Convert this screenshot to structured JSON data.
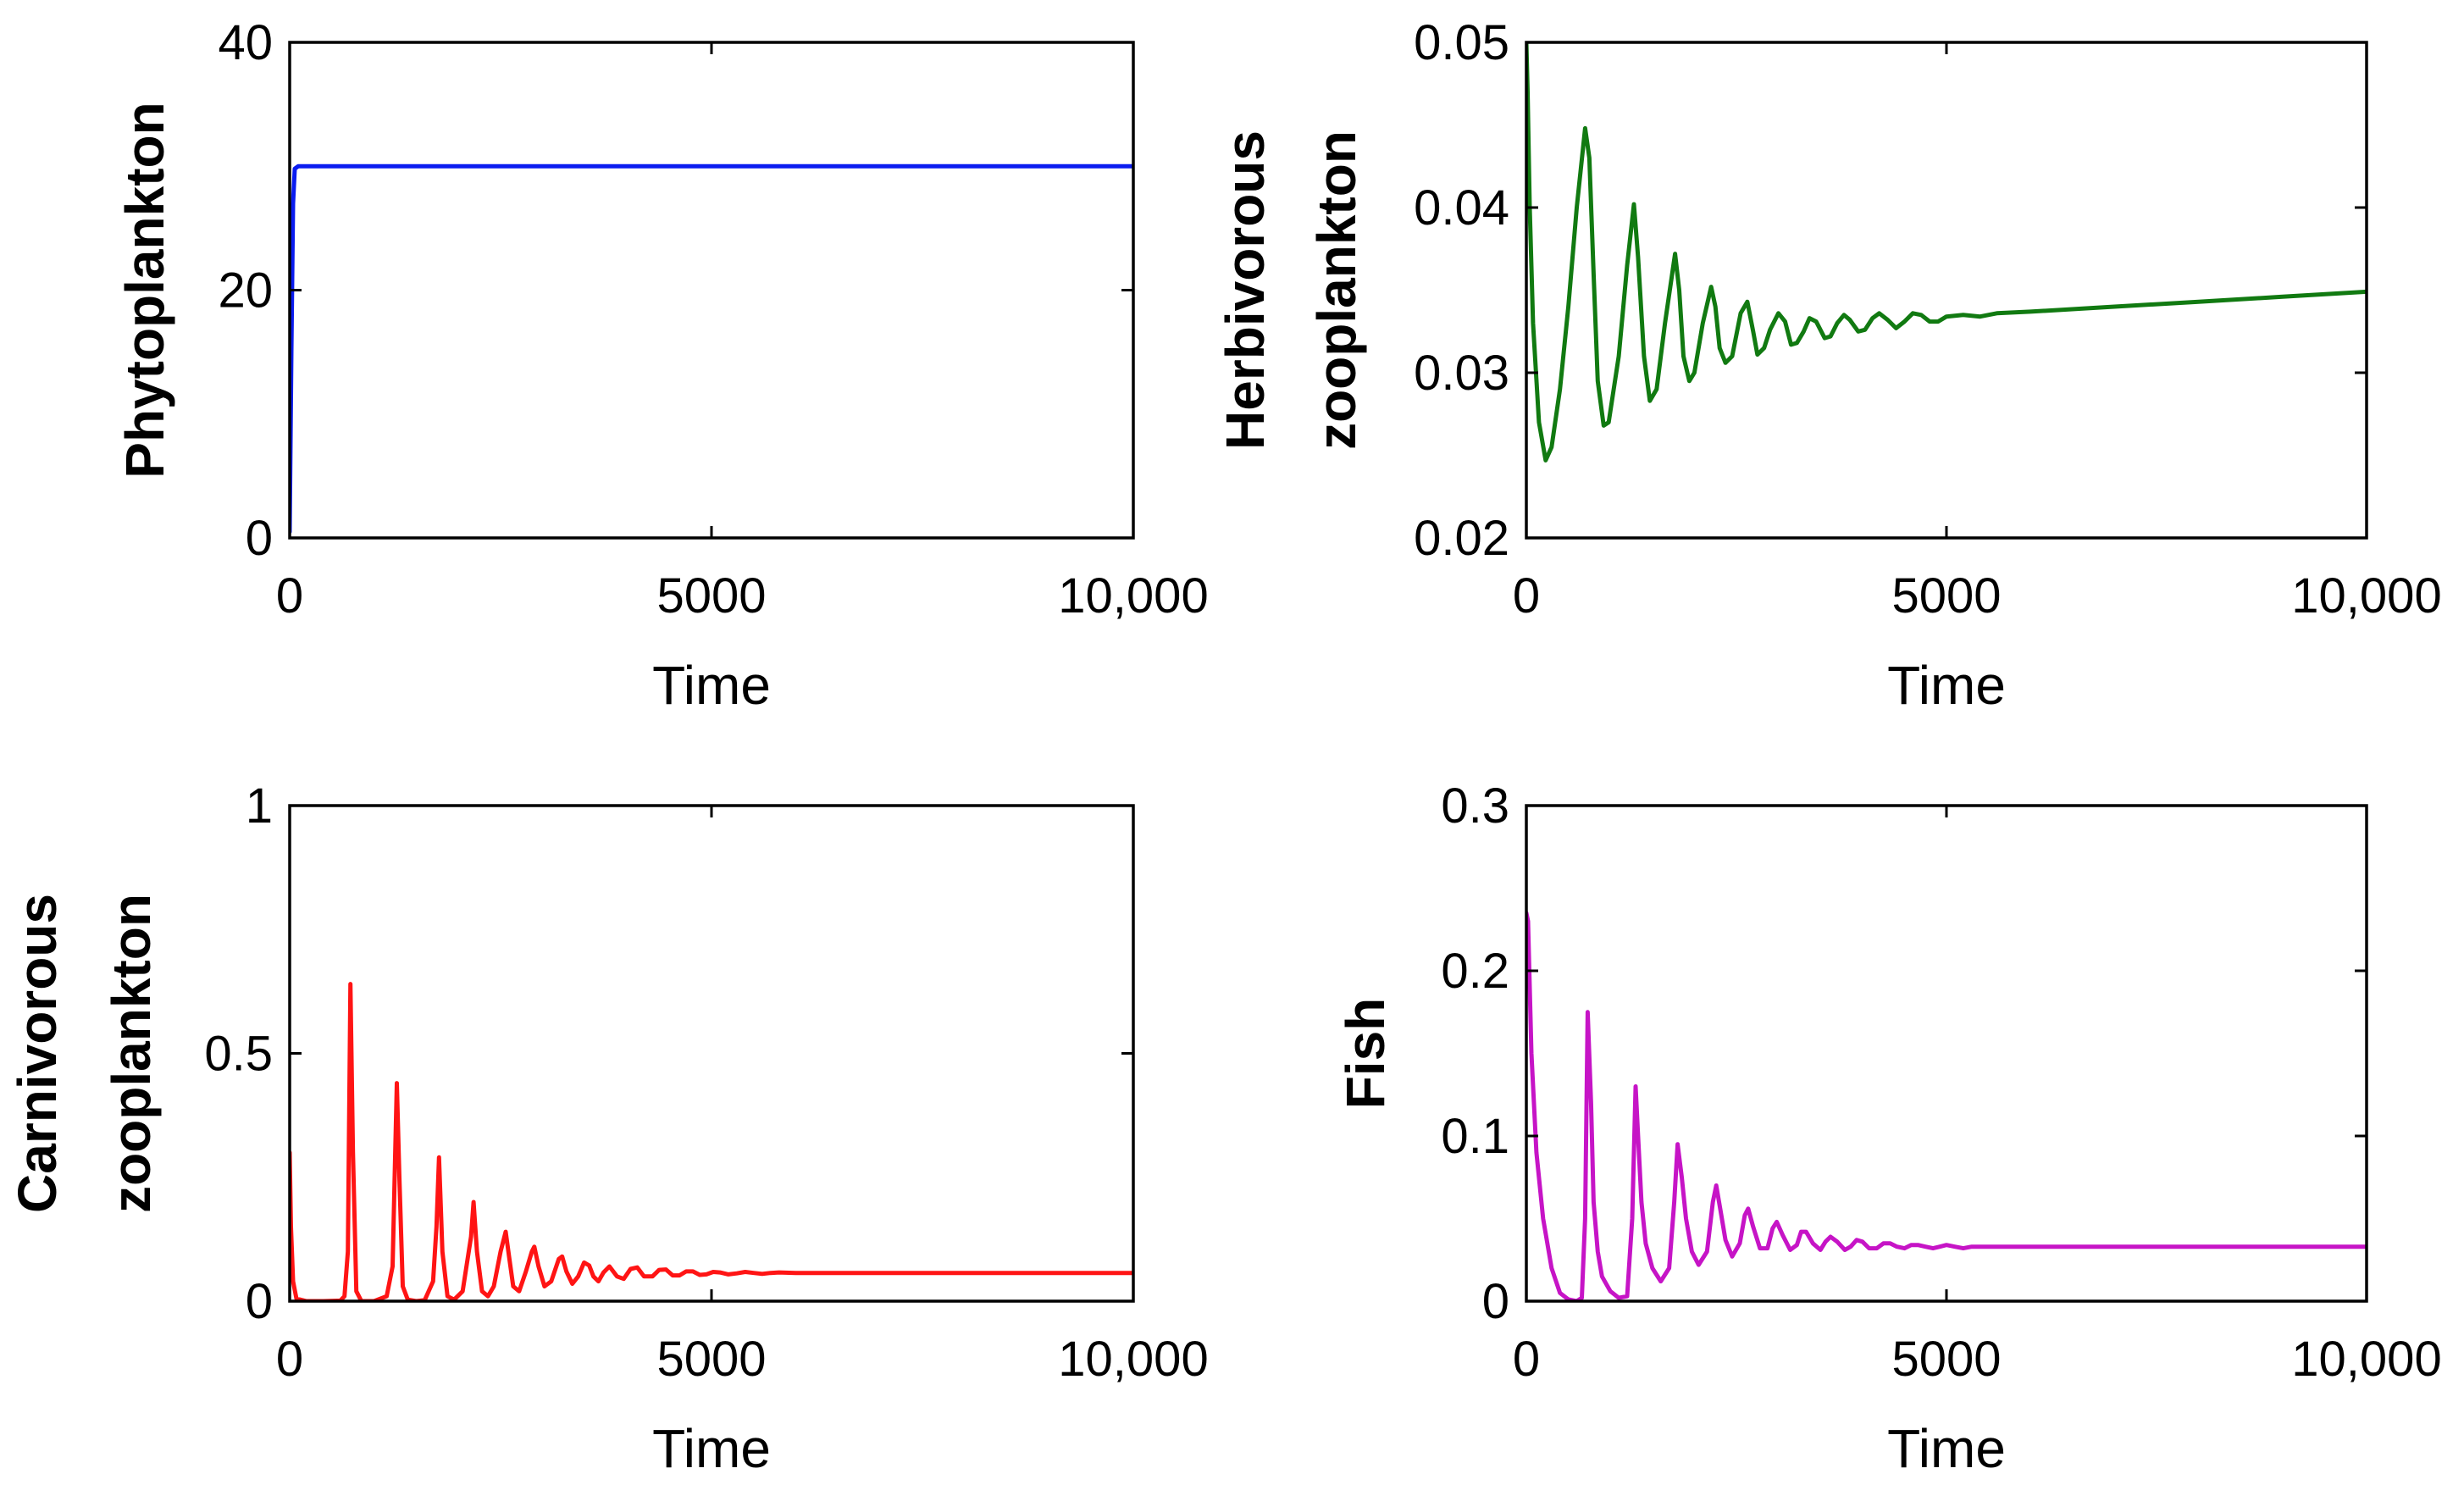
{
  "chart_data": [
    {
      "type": "line",
      "ylabel": [
        "Phytoplankton"
      ],
      "xlabel": "Time",
      "xlim": [
        0,
        10000
      ],
      "ylim": [
        0,
        40
      ],
      "xticks": [
        0,
        5000,
        10000
      ],
      "xtick_labels": [
        "0",
        "5000",
        "10,000"
      ],
      "yticks": [
        0,
        20,
        40
      ],
      "ytick_labels": [
        "0",
        "20",
        "40"
      ],
      "color": "#0a1cf0",
      "series": [
        {
          "name": "Phytoplankton",
          "x": [
            0,
            20,
            40,
            60,
            100,
            200,
            500,
            1000,
            2000,
            5000,
            10000
          ],
          "y": [
            0.5,
            15,
            27,
            29.8,
            30,
            30,
            30,
            30,
            30,
            30,
            30
          ]
        }
      ]
    },
    {
      "type": "line",
      "ylabel": [
        "Herbivorous",
        "zooplankton"
      ],
      "xlabel": "Time",
      "xlim": [
        0,
        10000
      ],
      "ylim": [
        0.02,
        0.05
      ],
      "xticks": [
        0,
        5000,
        10000
      ],
      "xtick_labels": [
        "0",
        "5000",
        "10,000"
      ],
      "yticks": [
        0.02,
        0.03,
        0.04,
        0.05
      ],
      "ytick_labels": [
        "0.02",
        "0.03",
        "0.04",
        "0.05"
      ],
      "color": "#117a11",
      "series": [
        {
          "name": "Herbivorous zooplankton",
          "x": [
            0,
            15,
            40,
            80,
            150,
            230,
            300,
            400,
            500,
            600,
            700,
            750,
            800,
            850,
            920,
            980,
            1100,
            1200,
            1280,
            1330,
            1400,
            1470,
            1550,
            1650,
            1770,
            1820,
            1870,
            1940,
            2000,
            2100,
            2200,
            2250,
            2300,
            2370,
            2450,
            2550,
            2630,
            2700,
            2750,
            2830,
            2900,
            3000,
            3080,
            3150,
            3220,
            3300,
            3370,
            3450,
            3550,
            3620,
            3700,
            3780,
            3850,
            3950,
            4030,
            4120,
            4200,
            4300,
            4400,
            4500,
            4600,
            4700,
            4800,
            4900,
            5000,
            5200,
            5400,
            5600,
            6000,
            7000,
            8000,
            9000,
            10000
          ],
          "y": [
            0.05,
            0.047,
            0.04,
            0.033,
            0.027,
            0.0247,
            0.0255,
            0.029,
            0.034,
            0.04,
            0.0448,
            0.043,
            0.036,
            0.0295,
            0.0268,
            0.027,
            0.031,
            0.0365,
            0.0402,
            0.037,
            0.031,
            0.0283,
            0.029,
            0.033,
            0.0372,
            0.035,
            0.031,
            0.0295,
            0.03,
            0.033,
            0.0352,
            0.034,
            0.0315,
            0.0306,
            0.031,
            0.0336,
            0.0343,
            0.0325,
            0.0311,
            0.0315,
            0.0326,
            0.0336,
            0.0331,
            0.0317,
            0.0318,
            0.0325,
            0.0333,
            0.0331,
            0.0321,
            0.0322,
            0.033,
            0.0335,
            0.0332,
            0.0325,
            0.0326,
            0.0333,
            0.0336,
            0.0332,
            0.0327,
            0.0331,
            0.0336,
            0.0335,
            0.0331,
            0.0331,
            0.0334,
            0.0335,
            0.0334,
            0.0336,
            0.0337,
            0.034,
            0.0343,
            0.0346,
            0.0349
          ]
        }
      ]
    },
    {
      "type": "line",
      "ylabel": [
        "Carnivorous",
        "zooplankton"
      ],
      "xlabel": "Time",
      "xlim": [
        0,
        10000
      ],
      "ylim": [
        0,
        1
      ],
      "xticks": [
        0,
        5000,
        10000
      ],
      "xtick_labels": [
        "0",
        "5000",
        "10,000"
      ],
      "yticks": [
        0,
        0.5,
        1
      ],
      "ytick_labels": [
        "0",
        "0.5",
        "1"
      ],
      "color": "#ff1414",
      "series": [
        {
          "name": "Carnivorous zooplankton",
          "x": [
            0,
            15,
            40,
            80,
            200,
            400,
            600,
            650,
            690,
            720,
            750,
            790,
            850,
            1000,
            1150,
            1220,
            1270,
            1300,
            1340,
            1400,
            1500,
            1600,
            1700,
            1740,
            1770,
            1810,
            1870,
            1950,
            2050,
            2150,
            2180,
            2220,
            2280,
            2350,
            2420,
            2500,
            2560,
            2600,
            2650,
            2720,
            2800,
            2870,
            2900,
            2950,
            3020,
            3100,
            3190,
            3230,
            3280,
            3350,
            3420,
            3490,
            3550,
            3600,
            3660,
            3720,
            3790,
            3880,
            3960,
            4040,
            4120,
            4200,
            4300,
            4380,
            4460,
            4540,
            4620,
            4700,
            4780,
            4860,
            4940,
            5020,
            5100,
            5200,
            5300,
            5400,
            5500,
            5600,
            5700,
            5800,
            6000,
            6500,
            7000,
            8000,
            9000,
            10000
          ],
          "y": [
            0.3,
            0.15,
            0.04,
            0.005,
            0,
            0,
            0.001,
            0.01,
            0.1,
            0.64,
            0.3,
            0.02,
            0,
            0,
            0.01,
            0.07,
            0.44,
            0.25,
            0.03,
            0.003,
            0,
            0.002,
            0.04,
            0.15,
            0.29,
            0.1,
            0.01,
            0.003,
            0.02,
            0.13,
            0.2,
            0.1,
            0.02,
            0.01,
            0.03,
            0.1,
            0.14,
            0.09,
            0.03,
            0.02,
            0.06,
            0.1,
            0.11,
            0.07,
            0.03,
            0.04,
            0.085,
            0.09,
            0.06,
            0.035,
            0.05,
            0.078,
            0.072,
            0.05,
            0.04,
            0.058,
            0.07,
            0.05,
            0.045,
            0.065,
            0.068,
            0.05,
            0.05,
            0.063,
            0.064,
            0.052,
            0.052,
            0.06,
            0.06,
            0.053,
            0.054,
            0.059,
            0.058,
            0.054,
            0.056,
            0.059,
            0.057,
            0.055,
            0.057,
            0.058,
            0.057,
            0.057,
            0.057,
            0.057,
            0.057,
            0.057
          ]
        }
      ]
    },
    {
      "type": "line",
      "ylabel": [
        "Fish"
      ],
      "xlabel": "Time",
      "xlim": [
        0,
        10000
      ],
      "ylim": [
        0,
        0.3
      ],
      "xticks": [
        0,
        5000,
        10000
      ],
      "xtick_labels": [
        "0",
        "5000",
        "10,000"
      ],
      "yticks": [
        0,
        0.1,
        0.2,
        0.3
      ],
      "ytick_labels": [
        "0",
        "0.1",
        "0.2",
        "0.3"
      ],
      "color": "#c614c6",
      "series": [
        {
          "name": "Fish",
          "x": [
            0,
            20,
            60,
            120,
            200,
            300,
            400,
            500,
            600,
            660,
            700,
            730,
            770,
            800,
            850,
            900,
            1000,
            1100,
            1200,
            1260,
            1300,
            1330,
            1370,
            1420,
            1500,
            1600,
            1700,
            1760,
            1800,
            1850,
            1900,
            1970,
            2050,
            2150,
            2220,
            2260,
            2310,
            2370,
            2450,
            2540,
            2600,
            2640,
            2700,
            2780,
            2870,
            2930,
            2980,
            3050,
            3140,
            3220,
            3270,
            3330,
            3410,
            3500,
            3560,
            3620,
            3700,
            3790,
            3860,
            3930,
            4000,
            4080,
            4170,
            4250,
            4330,
            4410,
            4500,
            4580,
            4660,
            4750,
            4840,
            4920,
            5000,
            5100,
            5200,
            5300,
            5400,
            5500,
            5700,
            6000,
            6500,
            7000,
            8000,
            9000,
            10000
          ],
          "y": [
            0.235,
            0.23,
            0.15,
            0.09,
            0.05,
            0.02,
            0.005,
            0.001,
            0,
            0.002,
            0.05,
            0.175,
            0.12,
            0.06,
            0.03,
            0.015,
            0.006,
            0.002,
            0.003,
            0.05,
            0.13,
            0.1,
            0.06,
            0.035,
            0.02,
            0.012,
            0.02,
            0.06,
            0.095,
            0.075,
            0.05,
            0.03,
            0.022,
            0.03,
            0.06,
            0.07,
            0.055,
            0.037,
            0.027,
            0.035,
            0.052,
            0.056,
            0.045,
            0.032,
            0.032,
            0.044,
            0.048,
            0.04,
            0.031,
            0.034,
            0.042,
            0.042,
            0.035,
            0.031,
            0.036,
            0.039,
            0.036,
            0.031,
            0.033,
            0.037,
            0.036,
            0.032,
            0.032,
            0.035,
            0.035,
            0.033,
            0.032,
            0.034,
            0.034,
            0.033,
            0.032,
            0.033,
            0.034,
            0.033,
            0.032,
            0.033,
            0.033,
            0.033,
            0.033,
            0.033,
            0.033,
            0.033,
            0.033,
            0.033,
            0.033
          ]
        }
      ]
    }
  ]
}
